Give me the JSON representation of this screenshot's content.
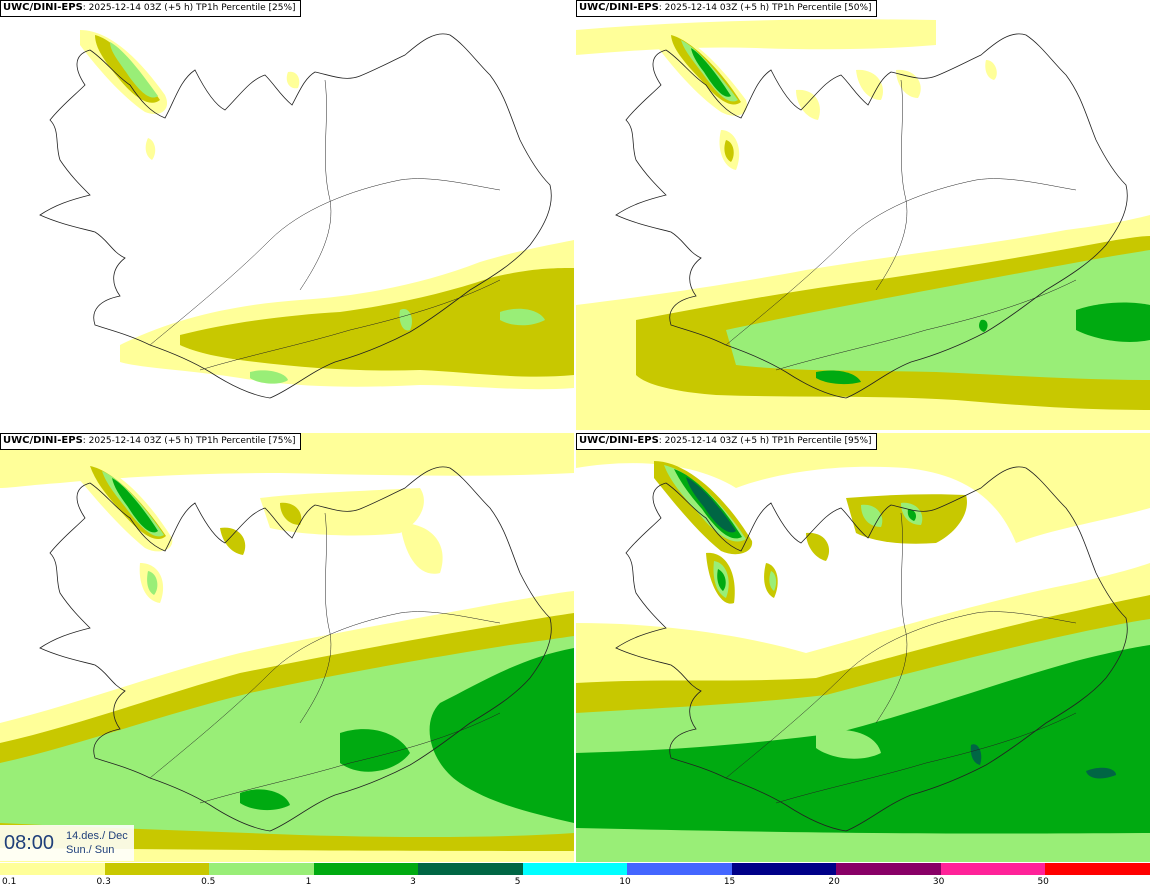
{
  "panels": [
    {
      "model": "UWC/DINI-EPS",
      "run": ": 2025-12-14 03Z (+5 h) ",
      "field": "TP1h Percentile [25%]"
    },
    {
      "model": "UWC/DINI-EPS",
      "run": ": 2025-12-14 03Z (+5 h) ",
      "field": "TP1h Percentile [50%]"
    },
    {
      "model": "UWC/DINI-EPS",
      "run": ": 2025-12-14 03Z (+5 h) ",
      "field": "TP1h Percentile [75%]"
    },
    {
      "model": "UWC/DINI-EPS",
      "run": ": 2025-12-14 03Z (+5 h) ",
      "field": "TP1h Percentile [95%]"
    }
  ],
  "valid_time": {
    "time": "08:00",
    "date_line1": "14.des./ Dec",
    "date_line2": "Sun./ Sun"
  },
  "legend": {
    "levels": [
      "0.1",
      "0.3",
      "0.5",
      "1",
      "3",
      "5",
      "10",
      "15",
      "20",
      "30",
      "50"
    ],
    "colors": [
      "#ffff99",
      "#c8c800",
      "#99ee77",
      "#00aa11",
      "#006644",
      "#00ffff",
      "#4466ff",
      "#000088",
      "#880066",
      "#ff2299",
      "#ff0000"
    ]
  },
  "map_colors": {
    "lvl1": "#ffff99",
    "lvl2": "#c8c800",
    "lvl3": "#99ee77",
    "lvl4": "#00aa11",
    "lvl5": "#006644",
    "coast": "#222222"
  }
}
